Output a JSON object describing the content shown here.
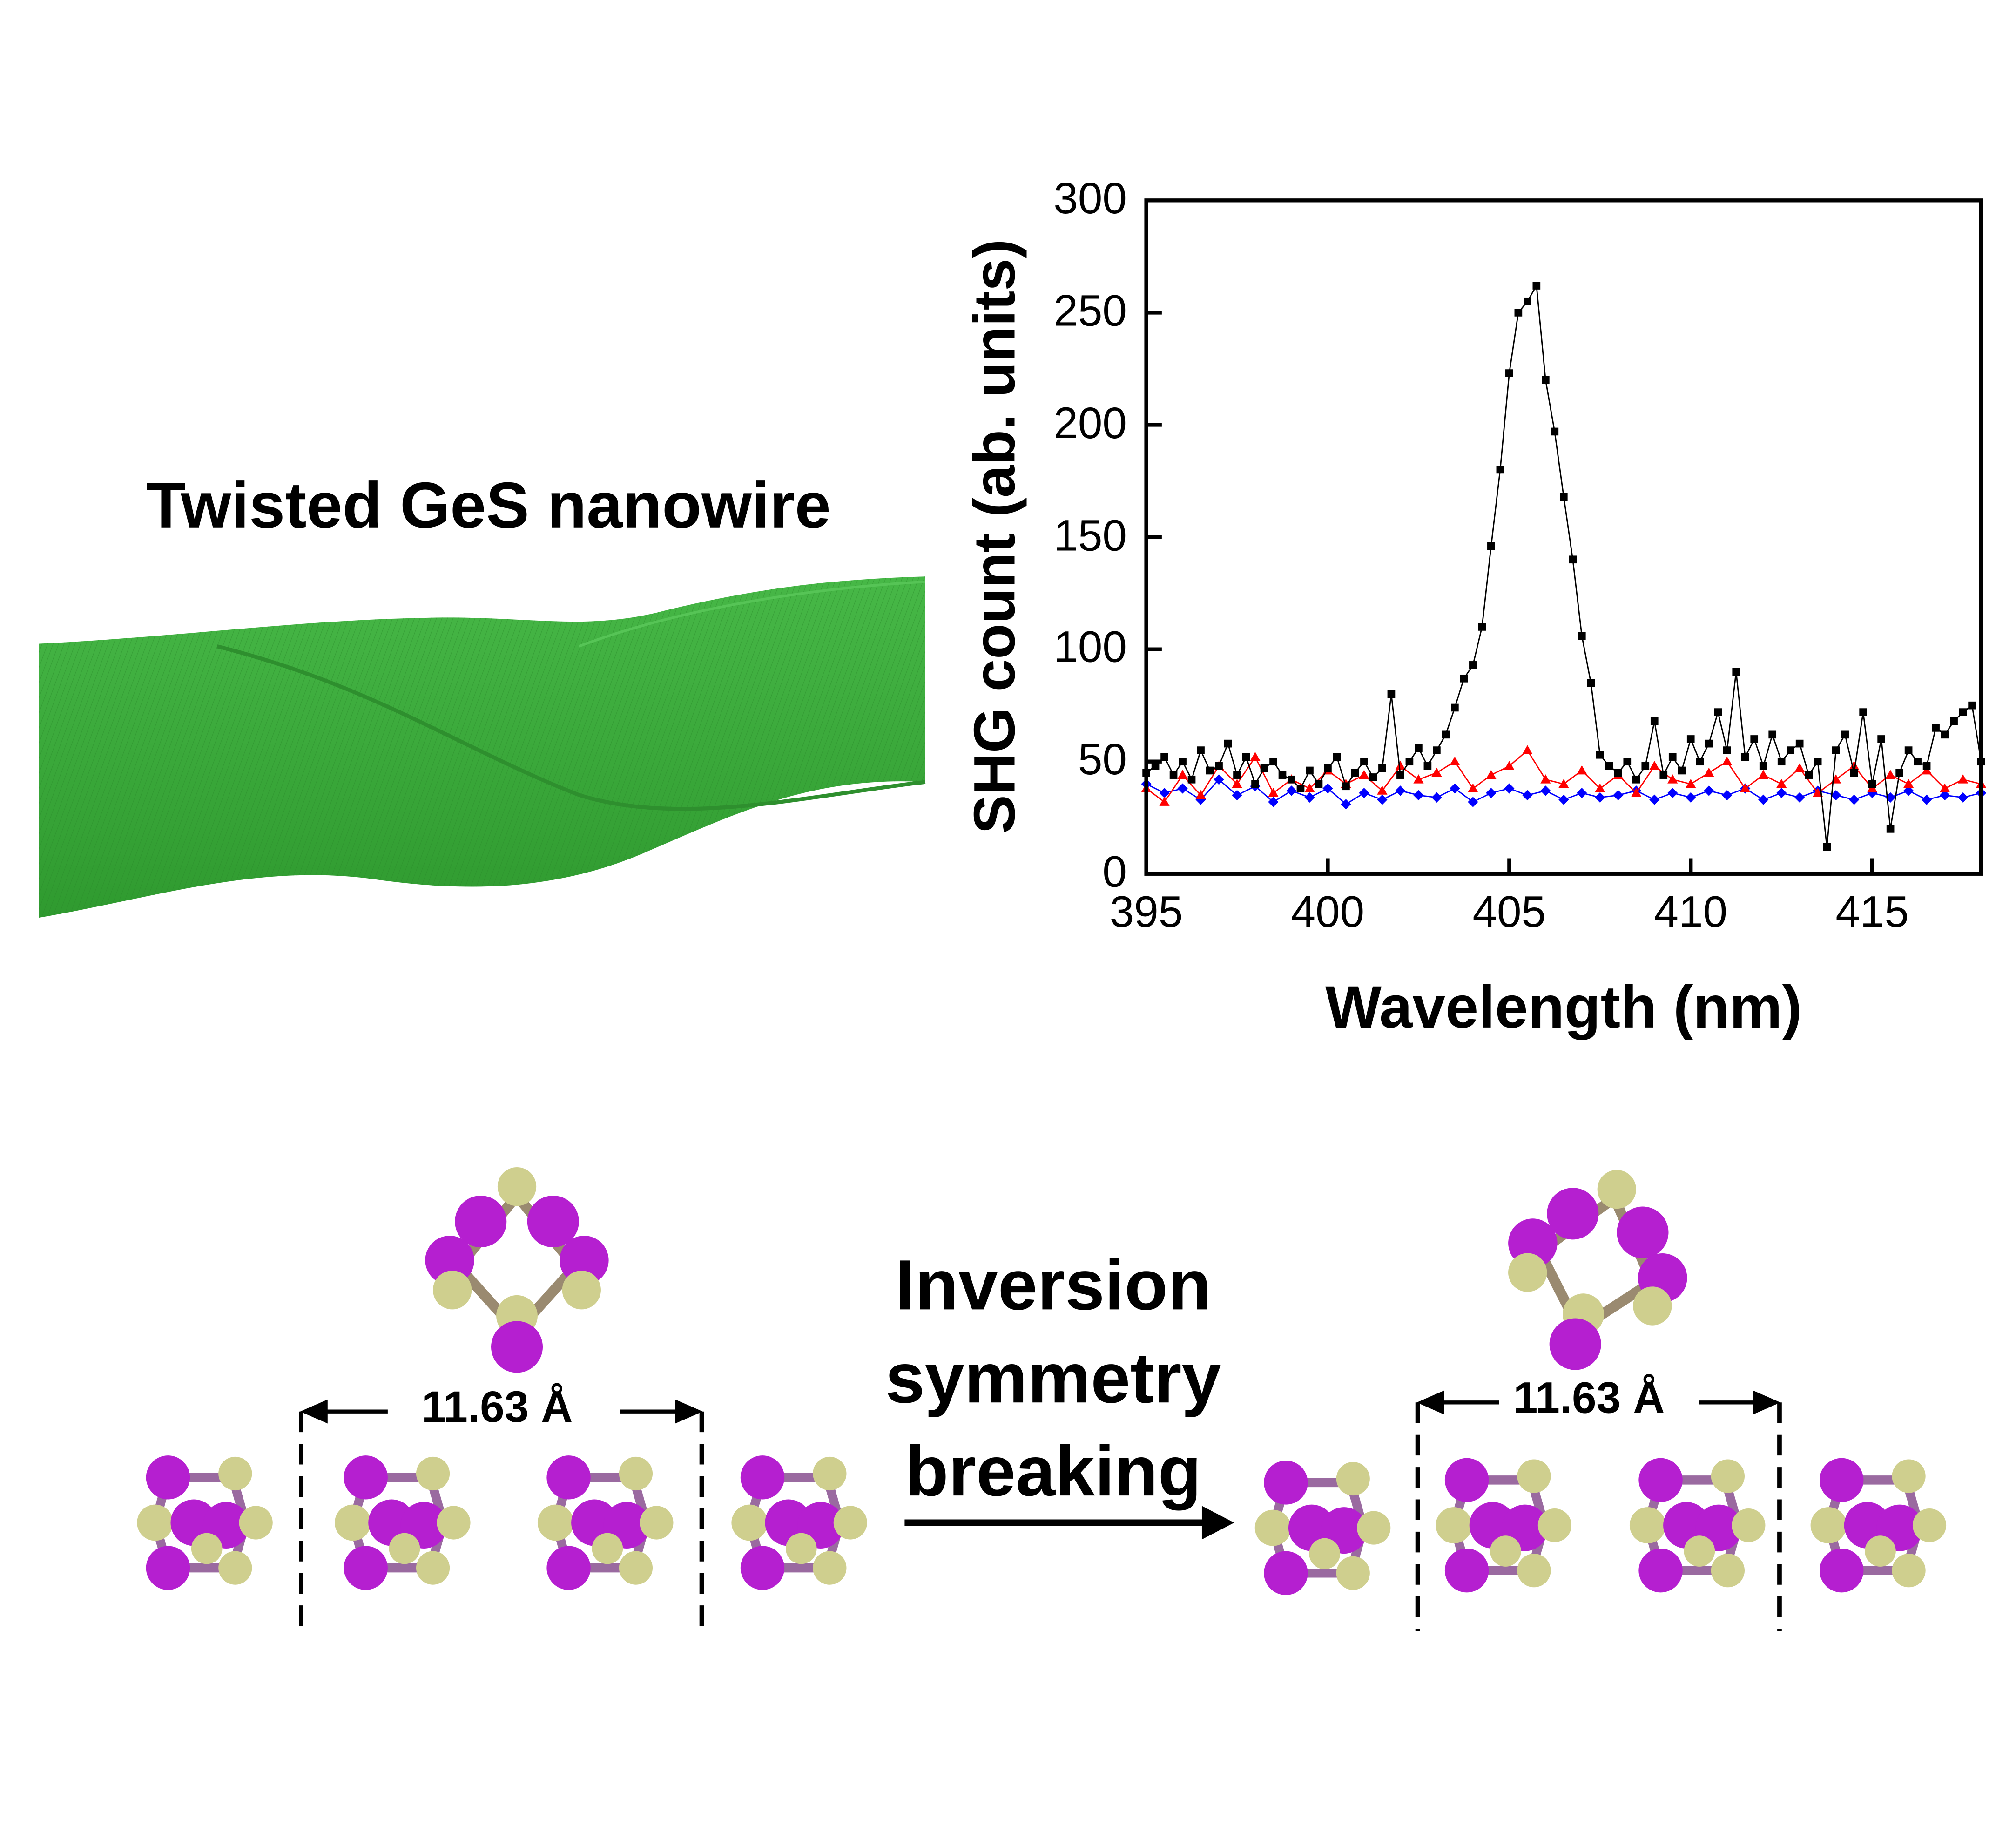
{
  "nanowire": {
    "title": "Twisted GeS nanowire",
    "color": "#3aae3a"
  },
  "transition": {
    "line1": "Inversion",
    "line2": "symmetry",
    "line3": "breaking"
  },
  "structures": {
    "left_spacing": "11.63 Å",
    "right_spacing": "11.63 Å",
    "atom_colors": {
      "purple": "#b51fd0",
      "tan": "#cfcf8e"
    }
  },
  "chart_data": {
    "type": "scatter",
    "xlabel": "Wavelength (nm)",
    "ylabel": "SHG count (ab. units)",
    "xlim": [
      395,
      418
    ],
    "ylim": [
      0,
      300
    ],
    "xticks": [
      "395",
      "400",
      "405",
      "410",
      "415"
    ],
    "yticks": [
      "0",
      "50",
      "100",
      "150",
      "200",
      "250",
      "300"
    ],
    "grid": false,
    "series": [
      {
        "color": "#000000",
        "marker": "square",
        "x": [
          395,
          395.25,
          395.5,
          395.75,
          396,
          396.25,
          396.5,
          396.75,
          397,
          397.25,
          397.5,
          397.75,
          398,
          398.25,
          398.5,
          398.75,
          399,
          399.25,
          399.5,
          399.75,
          400,
          400.25,
          400.5,
          400.75,
          401,
          401.25,
          401.5,
          401.75,
          402,
          402.25,
          402.5,
          402.75,
          403,
          403.25,
          403.5,
          403.75,
          404,
          404.25,
          404.5,
          404.75,
          405,
          405.25,
          405.5,
          405.75,
          406,
          406.25,
          406.5,
          406.75,
          407,
          407.25,
          407.5,
          407.75,
          408,
          408.25,
          408.5,
          408.75,
          409,
          409.25,
          409.5,
          409.75,
          410,
          410.25,
          410.5,
          410.75,
          411,
          411.25,
          411.5,
          411.75,
          412,
          412.25,
          412.5,
          412.75,
          413,
          413.25,
          413.5,
          413.75,
          414,
          414.25,
          414.5,
          414.75,
          415,
          415.25,
          415.5,
          415.75,
          416,
          416.25,
          416.5,
          416.75,
          417,
          417.25,
          417.5,
          417.75,
          418
        ],
        "values": [
          45,
          48,
          52,
          44,
          50,
          42,
          55,
          46,
          48,
          58,
          44,
          52,
          40,
          47,
          50,
          44,
          42,
          38,
          46,
          40,
          47,
          52,
          39,
          45,
          50,
          43,
          47,
          80,
          44,
          50,
          56,
          48,
          55,
          62,
          74,
          87,
          93,
          110,
          146,
          180,
          223,
          250,
          255,
          262,
          220,
          197,
          168,
          140,
          106,
          85,
          53,
          48,
          45,
          50,
          42,
          48,
          68,
          44,
          52,
          46,
          60,
          50,
          58,
          72,
          55,
          90,
          52,
          60,
          48,
          62,
          50,
          55,
          58,
          44,
          50,
          12,
          55,
          62,
          45,
          72,
          40,
          60,
          20,
          45,
          55,
          50,
          48,
          65,
          62,
          68,
          72,
          75,
          50
        ]
      },
      {
        "color": "#ff0000",
        "marker": "triangle",
        "x": [
          395,
          395.5,
          396,
          396.5,
          397,
          397.5,
          398,
          398.5,
          399,
          399.5,
          400,
          400.5,
          401,
          401.5,
          402,
          402.5,
          403,
          403.5,
          404,
          404.5,
          405,
          405.5,
          406,
          406.5,
          407,
          407.5,
          408,
          408.5,
          409,
          409.5,
          410,
          410.5,
          411,
          411.5,
          412,
          412.5,
          413,
          413.5,
          414,
          414.5,
          415,
          415.5,
          416,
          416.5,
          417,
          417.5,
          418
        ],
        "values": [
          38,
          32,
          44,
          35,
          48,
          40,
          52,
          36,
          42,
          38,
          46,
          40,
          44,
          37,
          48,
          42,
          45,
          50,
          38,
          44,
          48,
          55,
          42,
          40,
          46,
          38,
          44,
          36,
          48,
          42,
          40,
          45,
          50,
          38,
          44,
          40,
          47,
          36,
          42,
          48,
          38,
          44,
          40,
          46,
          38,
          42,
          40
        ]
      },
      {
        "color": "#0000ff",
        "marker": "diamond",
        "x": [
          395,
          395.5,
          396,
          396.5,
          397,
          397.5,
          398,
          398.5,
          399,
          399.5,
          400,
          400.5,
          401,
          401.5,
          402,
          402.5,
          403,
          403.5,
          404,
          404.5,
          405,
          405.5,
          406,
          406.5,
          407,
          407.5,
          408,
          408.5,
          409,
          409.5,
          410,
          410.5,
          411,
          411.5,
          412,
          412.5,
          413,
          413.5,
          414,
          414.5,
          415,
          415.5,
          416,
          416.5,
          417,
          417.5,
          418
        ],
        "values": [
          40,
          36,
          38,
          33,
          42,
          35,
          39,
          32,
          37,
          34,
          38,
          31,
          36,
          33,
          37,
          35,
          34,
          38,
          32,
          36,
          38,
          35,
          37,
          33,
          36,
          34,
          35,
          37,
          33,
          36,
          34,
          37,
          35,
          38,
          33,
          36,
          34,
          37,
          35,
          33,
          36,
          34,
          37,
          33,
          35,
          34,
          36
        ]
      }
    ]
  }
}
